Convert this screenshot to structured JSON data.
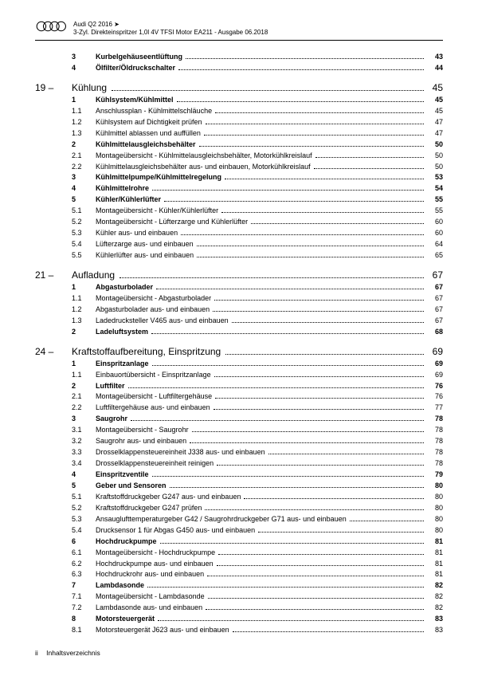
{
  "header": {
    "line1": "Audi Q2 2016 ➤",
    "line2": "3-Zyl. Direkteinspritzer 1,0l 4V TFSI Motor EA211 - Ausgabe 06.2018"
  },
  "orphan": [
    {
      "num": "3",
      "title": "Kurbelgehäuseentlüftung",
      "page": "43",
      "bold": true
    },
    {
      "num": "4",
      "title": "Ölfilter/Öldruckschalter",
      "page": "44",
      "bold": true
    }
  ],
  "sections": [
    {
      "num": "19 –",
      "title": "Kühlung",
      "page": "45",
      "items": [
        {
          "num": "1",
          "title": "Kühlsystem/Kühlmittel",
          "page": "45",
          "bold": true
        },
        {
          "num": "1.1",
          "title": "Anschlussplan - Kühlmittelschläuche",
          "page": "45"
        },
        {
          "num": "1.2",
          "title": "Kühlsystem auf Dichtigkeit prüfen",
          "page": "47"
        },
        {
          "num": "1.3",
          "title": "Kühlmittel ablassen und auffüllen",
          "page": "47"
        },
        {
          "num": "2",
          "title": "Kühlmittelausgleichsbehälter",
          "page": "50",
          "bold": true
        },
        {
          "num": "2.1",
          "title": "Montageübersicht - Kühlmittelausgleichsbehälter, Motorkühlkreislauf",
          "page": "50"
        },
        {
          "num": "2.2",
          "title": "Kühlmittelausgleichsbehälter aus- und einbauen, Motorkühlkreislauf",
          "page": "50"
        },
        {
          "num": "3",
          "title": "Kühlmittelpumpe/Kühlmittelregelung",
          "page": "53",
          "bold": true
        },
        {
          "num": "4",
          "title": "Kühlmittelrohre",
          "page": "54",
          "bold": true
        },
        {
          "num": "5",
          "title": "Kühler/Kühlerlüfter",
          "page": "55",
          "bold": true
        },
        {
          "num": "5.1",
          "title": "Montageübersicht - Kühler/Kühlerlüfter",
          "page": "55"
        },
        {
          "num": "5.2",
          "title": "Montageübersicht - Lüfterzarge und Kühlerlüfter",
          "page": "60"
        },
        {
          "num": "5.3",
          "title": "Kühler aus- und einbauen",
          "page": "60"
        },
        {
          "num": "5.4",
          "title": "Lüfterzarge aus- und einbauen",
          "page": "64"
        },
        {
          "num": "5.5",
          "title": "Kühlerlüfter aus- und einbauen",
          "page": "65"
        }
      ]
    },
    {
      "num": "21 –",
      "title": "Aufladung",
      "page": "67",
      "items": [
        {
          "num": "1",
          "title": "Abgasturbolader",
          "page": "67",
          "bold": true
        },
        {
          "num": "1.1",
          "title": "Montageübersicht - Abgasturbolader",
          "page": "67"
        },
        {
          "num": "1.2",
          "title": "Abgasturbolader aus- und einbauen",
          "page": "67"
        },
        {
          "num": "1.3",
          "title": "Ladedrucksteller V465 aus- und einbauen",
          "page": "67"
        },
        {
          "num": "2",
          "title": "Ladeluftsystem",
          "page": "68",
          "bold": true
        }
      ]
    },
    {
      "num": "24 –",
      "title": "Kraftstoffaufbereitung, Einspritzung",
      "page": "69",
      "items": [
        {
          "num": "1",
          "title": "Einspritzanlage",
          "page": "69",
          "bold": true
        },
        {
          "num": "1.1",
          "title": "Einbauortübersicht - Einspritzanlage",
          "page": "69"
        },
        {
          "num": "2",
          "title": "Luftfilter",
          "page": "76",
          "bold": true
        },
        {
          "num": "2.1",
          "title": "Montageübersicht - Luftfiltergehäuse",
          "page": "76"
        },
        {
          "num": "2.2",
          "title": "Luftfiltergehäuse aus- und einbauen",
          "page": "77"
        },
        {
          "num": "3",
          "title": "Saugrohr",
          "page": "78",
          "bold": true
        },
        {
          "num": "3.1",
          "title": "Montageübersicht - Saugrohr",
          "page": "78"
        },
        {
          "num": "3.2",
          "title": "Saugrohr aus- und einbauen",
          "page": "78"
        },
        {
          "num": "3.3",
          "title": "Drosselklappensteuereinheit J338 aus- und einbauen",
          "page": "78"
        },
        {
          "num": "3.4",
          "title": "Drosselklappensteuereinheit reinigen",
          "page": "78"
        },
        {
          "num": "4",
          "title": "Einspritzventile",
          "page": "79",
          "bold": true
        },
        {
          "num": "5",
          "title": "Geber und Sensoren",
          "page": "80",
          "bold": true
        },
        {
          "num": "5.1",
          "title": "Kraftstoffdruckgeber G247 aus- und einbauen",
          "page": "80"
        },
        {
          "num": "5.2",
          "title": "Kraftstoffdruckgeber G247 prüfen",
          "page": "80"
        },
        {
          "num": "5.3",
          "title": "Ansauglufttemperaturgeber G42 / Saugrohrdruckgeber G71 aus- und einbauen",
          "page": "80"
        },
        {
          "num": "5.4",
          "title": "Drucksensor 1 für Abgas G450 aus- und einbauen",
          "page": "80"
        },
        {
          "num": "6",
          "title": "Hochdruckpumpe",
          "page": "81",
          "bold": true
        },
        {
          "num": "6.1",
          "title": "Montageübersicht - Hochdruckpumpe",
          "page": "81"
        },
        {
          "num": "6.2",
          "title": "Hochdruckpumpe aus- und einbauen",
          "page": "81"
        },
        {
          "num": "6.3",
          "title": "Hochdruckrohr aus- und einbauen",
          "page": "81"
        },
        {
          "num": "7",
          "title": "Lambdasonde",
          "page": "82",
          "bold": true
        },
        {
          "num": "7.1",
          "title": "Montageübersicht - Lambdasonde",
          "page": "82"
        },
        {
          "num": "7.2",
          "title": "Lambdasonde aus- und einbauen",
          "page": "82"
        },
        {
          "num": "8",
          "title": "Motorsteuergerät",
          "page": "83",
          "bold": true
        },
        {
          "num": "8.1",
          "title": "Motorsteuergerät J623 aus- und einbauen",
          "page": "83"
        }
      ]
    }
  ],
  "footer": {
    "pageNum": "ii",
    "label": "Inhaltsverzeichnis"
  }
}
